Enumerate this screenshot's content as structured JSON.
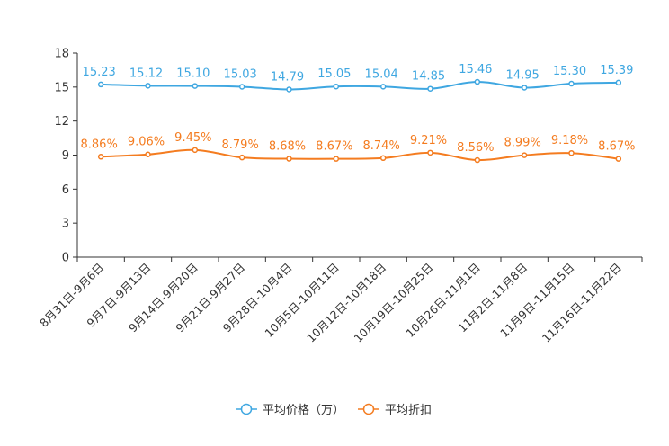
{
  "chart_data": {
    "type": "line",
    "title": "",
    "xlabel": "",
    "ylabel": "",
    "ylim": [
      0,
      18
    ],
    "yticks": [
      "0",
      "3",
      "6",
      "9",
      "12",
      "15",
      "18"
    ],
    "categories": [
      "8月31日-9月6日",
      "9月7日-9月13日",
      "9月14日-9月20日",
      "9月21日-9月27日",
      "9月28日-10月4日",
      "10月5日-10月11日",
      "10月12日-10月18日",
      "10月19日-10月25日",
      "10月26日-11月1日",
      "11月2日-11月8日",
      "11月9日-11月15日",
      "11月16日-11月22日"
    ],
    "series": [
      {
        "name": "平均价格（万）",
        "color": "#3fa7e1",
        "values": [
          15.23,
          15.12,
          15.1,
          15.03,
          14.79,
          15.05,
          15.04,
          14.85,
          15.46,
          14.95,
          15.3,
          15.39
        ],
        "labels": [
          "15.23",
          "15.12",
          "15.10",
          "15.03",
          "14.79",
          "15.05",
          "15.04",
          "14.85",
          "15.46",
          "14.95",
          "15.30",
          "15.39"
        ]
      },
      {
        "name": "平均折扣",
        "color": "#f47c20",
        "values": [
          8.86,
          9.06,
          9.45,
          8.79,
          8.68,
          8.67,
          8.74,
          9.21,
          8.56,
          8.99,
          9.18,
          8.67
        ],
        "labels": [
          "8.86%",
          "9.06%",
          "9.45%",
          "8.79%",
          "8.68%",
          "8.67%",
          "8.74%",
          "9.21%",
          "8.56%",
          "8.99%",
          "9.18%",
          "8.67%"
        ]
      }
    ],
    "legend_position": "bottom-center",
    "grid": false
  }
}
